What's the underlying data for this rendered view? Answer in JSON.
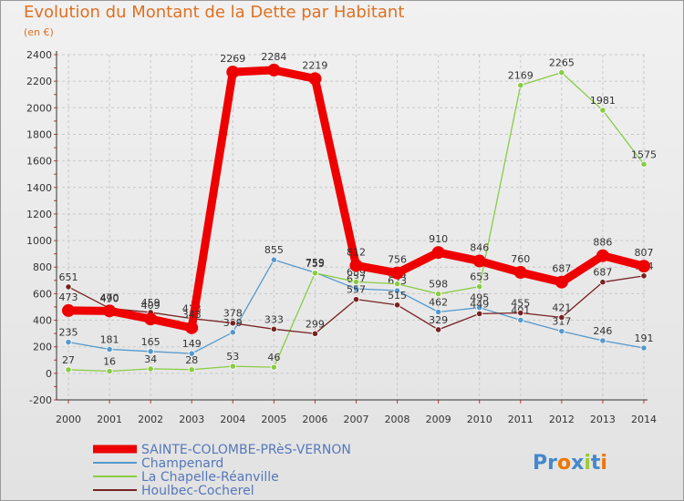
{
  "chart_data": {
    "type": "line",
    "title": "Evolution du Montant de la Dette par Habitant",
    "subtitle": "(en €)",
    "x": [
      "2000",
      "2001",
      "2002",
      "2003",
      "2004",
      "2005",
      "2006",
      "2007",
      "2008",
      "2009",
      "2010",
      "2011",
      "2012",
      "2013",
      "2014"
    ],
    "ylim": [
      -200,
      2400
    ],
    "yticks": [
      -200,
      0,
      200,
      400,
      600,
      800,
      1000,
      1200,
      1400,
      1600,
      1800,
      2000,
      2200,
      2400
    ],
    "grid": true,
    "legend_position": "bottom-left",
    "series": [
      {
        "name": "SAINTE-COLOMBE-PRèS-VERNON",
        "color": "#ee0000",
        "values": [
          473,
          470,
          409,
          343,
          2269,
          2284,
          2219,
          812,
          756,
          910,
          846,
          760,
          687,
          886,
          807
        ]
      },
      {
        "name": "Champenard",
        "color": "#5599cc",
        "values": [
          235,
          181,
          165,
          149,
          309,
          855,
          759,
          637,
          623,
          462,
          495,
          401,
          317,
          246,
          191
        ]
      },
      {
        "name": "La Chapelle-Réanville",
        "color": "#88cc44",
        "values": [
          27,
          16,
          34,
          28,
          53,
          46,
          755,
          689,
          674,
          598,
          653,
          2169,
          2265,
          1981,
          1575
        ]
      },
      {
        "name": "Houlbec-Cocherel",
        "color": "#772222",
        "values": [
          651,
          490,
          459,
          413,
          378,
          333,
          299,
          557,
          515,
          329,
          449,
          455,
          421,
          687,
          734
        ]
      }
    ]
  },
  "logo_text": "Proxiti"
}
